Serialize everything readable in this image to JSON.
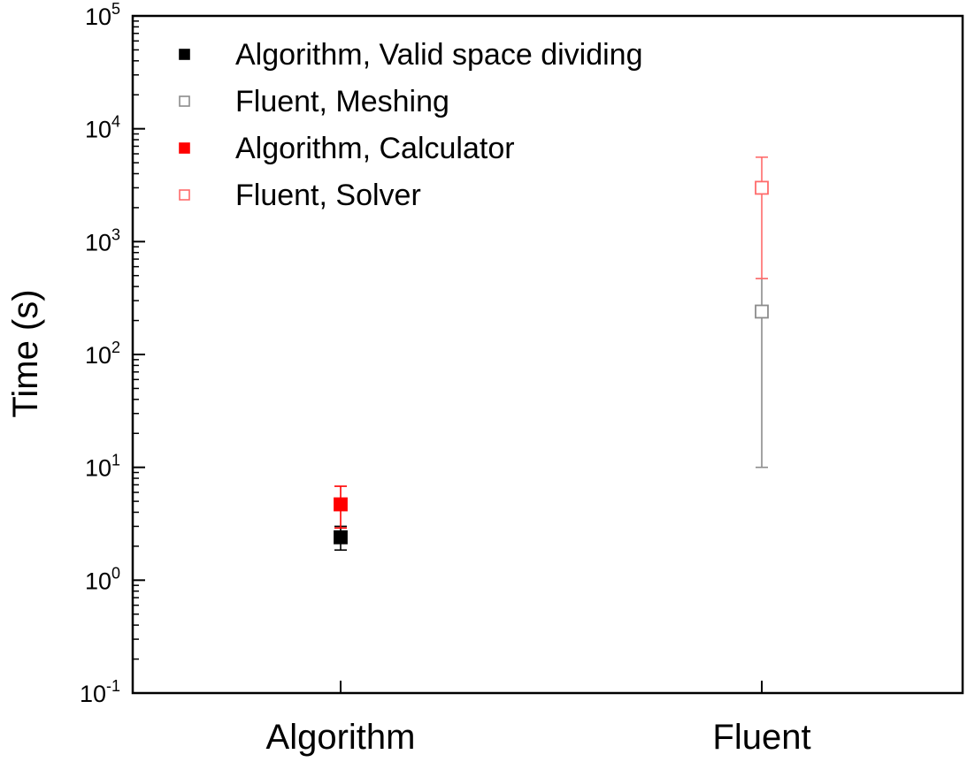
{
  "chart_data": {
    "type": "scatter",
    "title": "",
    "xlabel": "",
    "ylabel": "Time (s)",
    "yscale": "log",
    "ylim": [
      0.1,
      100000
    ],
    "categories": [
      "Algorithm",
      "Fluent"
    ],
    "y_ticks": [
      {
        "base": "10",
        "exp": "-1",
        "value": 0.1
      },
      {
        "base": "10",
        "exp": "0",
        "value": 1
      },
      {
        "base": "10",
        "exp": "1",
        "value": 10
      },
      {
        "base": "10",
        "exp": "2",
        "value": 100
      },
      {
        "base": "10",
        "exp": "3",
        "value": 1000
      },
      {
        "base": "10",
        "exp": "4",
        "value": 10000
      },
      {
        "base": "10",
        "exp": "5",
        "value": 100000
      }
    ],
    "grid": false,
    "legend_position": "top-left",
    "series": [
      {
        "name": "Algorithm, Valid space dividing",
        "category": "Algorithm",
        "value": 2.4,
        "err_low": 1.85,
        "err_high": 3.0,
        "color": "#000000",
        "filled": true
      },
      {
        "name": "Fluent, Meshing",
        "category": "Fluent",
        "value": 240,
        "err_low": 10,
        "err_high": 470,
        "color": "#8c8c8c",
        "filled": false
      },
      {
        "name": "Algorithm, Calculator",
        "category": "Algorithm",
        "value": 4.7,
        "err_low": 2.9,
        "err_high": 6.8,
        "color": "#ff0000",
        "filled": true
      },
      {
        "name": "Fluent, Solver",
        "category": "Fluent",
        "value": 3000,
        "err_low": 470,
        "err_high": 5600,
        "color": "#ff6b6b",
        "filled": false
      }
    ]
  }
}
